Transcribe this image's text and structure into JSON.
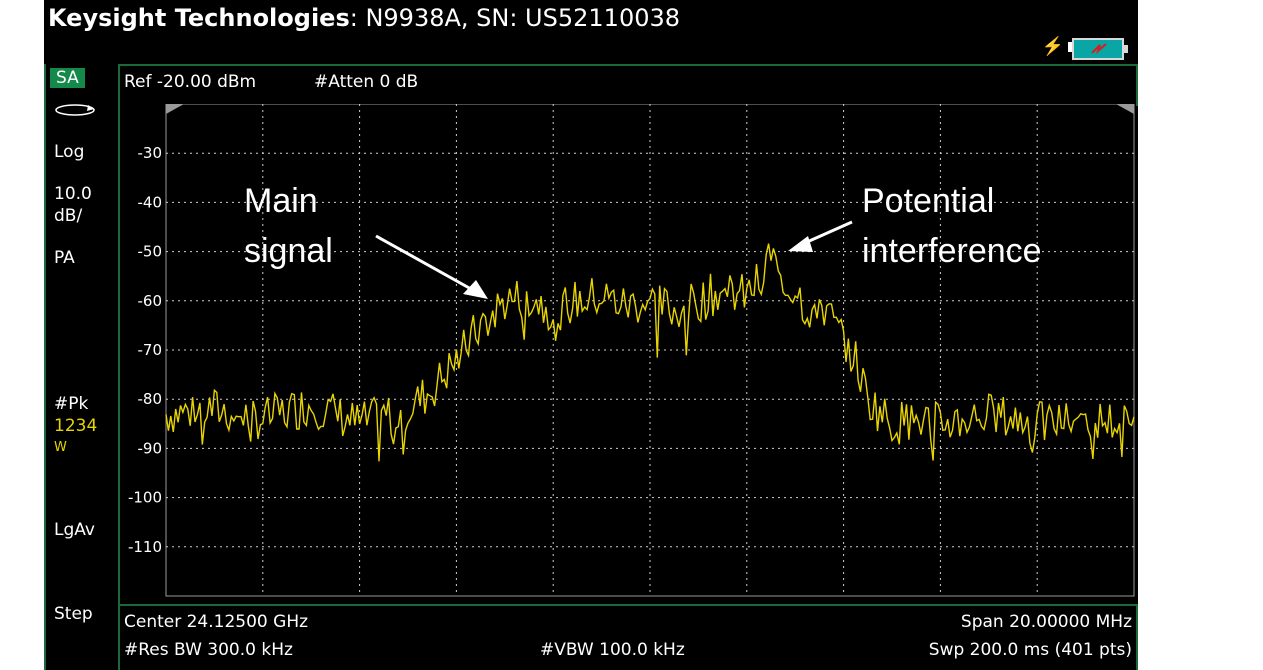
{
  "header": {
    "brand": "Keysight Technologies",
    "title_rest": ": N9938A, SN: US52110038"
  },
  "status_icons": [
    "power-plug-icon",
    "battery-icon"
  ],
  "left_panel": {
    "mode": "SA",
    "scale_type": "Log",
    "scale_value": "10.0",
    "scale_unit": "dB/",
    "preamp": "PA",
    "detector": "#Pk",
    "trace_numbers": "1234",
    "trace_mode": "W",
    "averaging": "LgAv",
    "step": "Step"
  },
  "top_info": {
    "ref_level": "Ref -20.00 dBm",
    "attenuation": "#Atten 0 dB"
  },
  "bottom_info": {
    "center": "Center 24.12500 GHz",
    "span": "Span 20.00000 MHz",
    "res_bw": "#Res BW 300.0 kHz",
    "vbw": "#VBW 100.0 kHz",
    "sweep": "Swp 200.0 ms (401 pts)"
  },
  "annotations": {
    "main_signal_line1": "Main",
    "main_signal_line2": "signal",
    "interference_line1": "Potential",
    "interference_line2": "interference"
  },
  "colors": {
    "trace": "#e7d400",
    "grid": "#d0d0d0",
    "panel_border": "#1a6a3a",
    "mode_badge": "#138a4a"
  },
  "chart_data": {
    "type": "line",
    "ylabel": "",
    "xlabel": "",
    "y_ticks": [
      "-30",
      "-40",
      "-50",
      "-60",
      "-70",
      "-80",
      "-90",
      "-100",
      "-110"
    ],
    "ylim": [
      -120,
      -20
    ],
    "xlim": [
      0,
      400
    ],
    "grid": true,
    "series": [
      {
        "x": [
          0,
          20,
          40,
          60,
          80,
          100,
          110,
          120,
          130,
          140,
          150,
          160,
          170,
          180,
          190,
          200,
          210,
          220,
          230,
          240,
          245,
          250,
          255,
          260,
          265,
          270,
          280,
          285,
          290,
          300,
          310,
          320,
          340,
          360,
          380,
          400
        ],
        "values": [
          -83,
          -82,
          -84,
          -81,
          -85,
          -82,
          -78,
          -72,
          -65,
          -60,
          -59,
          -62,
          -60,
          -59,
          -61,
          -60,
          -62,
          -60,
          -58,
          -59,
          -56,
          -50,
          -58,
          -57,
          -62,
          -60,
          -68,
          -72,
          -80,
          -85,
          -84,
          -85,
          -83,
          -85,
          -84,
          -85
        ]
      }
    ]
  }
}
